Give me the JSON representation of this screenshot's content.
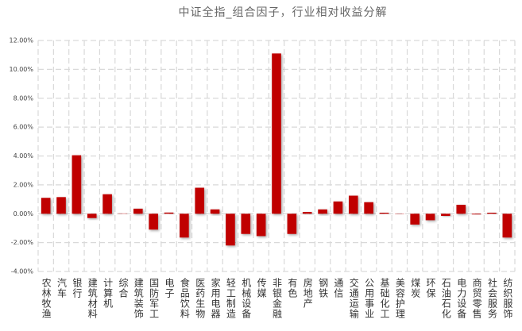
{
  "chart_data": {
    "type": "bar",
    "title": "中证全指_组合因子，行业相对收益分解",
    "categories": [
      "农林牧渔",
      "汽车",
      "银行",
      "建筑材料",
      "计算机",
      "综合",
      "建筑装饰",
      "国防军工",
      "电子",
      "食品饮料",
      "医药生物",
      "家用电器",
      "轻工制造",
      "机械设备",
      "传媒",
      "非银金融",
      "有色",
      "房地产",
      "钢铁",
      "通信",
      "交通运输",
      "公用事业",
      "基础化工",
      "美容护理",
      "煤炭",
      "环保",
      "石油石化",
      "电力设备",
      "商贸零售",
      "社会服务",
      "纺织服饰"
    ],
    "values": [
      1.1,
      1.15,
      4.05,
      -0.3,
      1.35,
      0.02,
      0.35,
      -1.1,
      0.08,
      -1.65,
      1.8,
      0.3,
      -2.2,
      -1.4,
      -1.55,
      11.1,
      -1.4,
      0.12,
      0.3,
      0.85,
      1.25,
      0.8,
      0.07,
      -0.02,
      -0.75,
      -0.45,
      -0.15,
      0.62,
      -0.05,
      0.07,
      -1.65
    ],
    "color": "#c00000",
    "ylim": [
      -4,
      12
    ],
    "yticks": [
      {
        "value": -4,
        "label": "-4.00%"
      },
      {
        "value": -2,
        "label": "-2.00%"
      },
      {
        "value": 0,
        "label": "0.00%"
      },
      {
        "value": 2,
        "label": "2.00%"
      },
      {
        "value": 4,
        "label": "4.00%"
      },
      {
        "value": 6,
        "label": "6.00%"
      },
      {
        "value": 8,
        "label": "8.00%"
      },
      {
        "value": 10,
        "label": "10.00%"
      },
      {
        "value": 12,
        "label": "12.00%"
      }
    ],
    "grid": true
  }
}
